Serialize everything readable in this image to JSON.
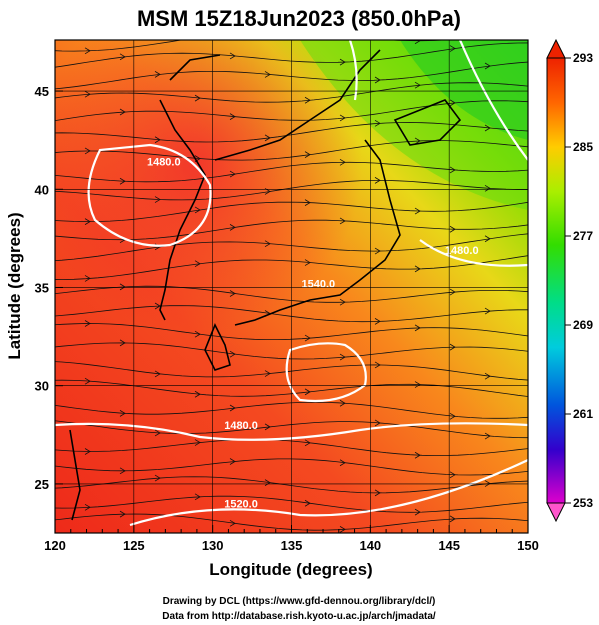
{
  "title": "MSM 15Z18Jun2023 (850.0hPa)",
  "map": {
    "type": "weather-map",
    "variable_levels": "850.0hPa",
    "x_axis": {
      "label": "Longitude (degrees)",
      "range": [
        120,
        150
      ],
      "ticks": [
        120,
        125,
        130,
        135,
        140,
        145,
        150
      ]
    },
    "y_axis": {
      "label": "Latitude  (degrees)",
      "range": [
        22.5,
        47.6
      ],
      "ticks": [
        25,
        30,
        35,
        40,
        45
      ]
    },
    "grid": true,
    "contour_labels": [
      {
        "text": "1480.0",
        "lon": 126.9,
        "lat": 41.2
      },
      {
        "text": "1480.0",
        "lon": 131.8,
        "lat": 27.8
      },
      {
        "text": "1520.0",
        "lon": 131.8,
        "lat": 23.8
      },
      {
        "text": "1540.0",
        "lon": 136.7,
        "lat": 35.0
      },
      {
        "text": "1480.0",
        "lon": 145.8,
        "lat": 36.7
      }
    ]
  },
  "colorbar": {
    "min": 253,
    "max": 293,
    "ticks": [
      293,
      285,
      277,
      269,
      261,
      253
    ],
    "colors": [
      "#ff55cc",
      "#dd00cc",
      "#6600cc",
      "#0022cc",
      "#0088ee",
      "#00ccdd",
      "#00ddaa",
      "#00dd44",
      "#33dd00",
      "#99ee00",
      "#ffee00",
      "#ffaa00",
      "#ff6600",
      "#ee2200"
    ]
  },
  "credits": {
    "line1": "Drawing by DCL (https://www.gfd-dennou.org/library/dcl/)",
    "line2": "Data from http://database.rish.kyoto-u.ac.jp/arch/jmadata/"
  }
}
